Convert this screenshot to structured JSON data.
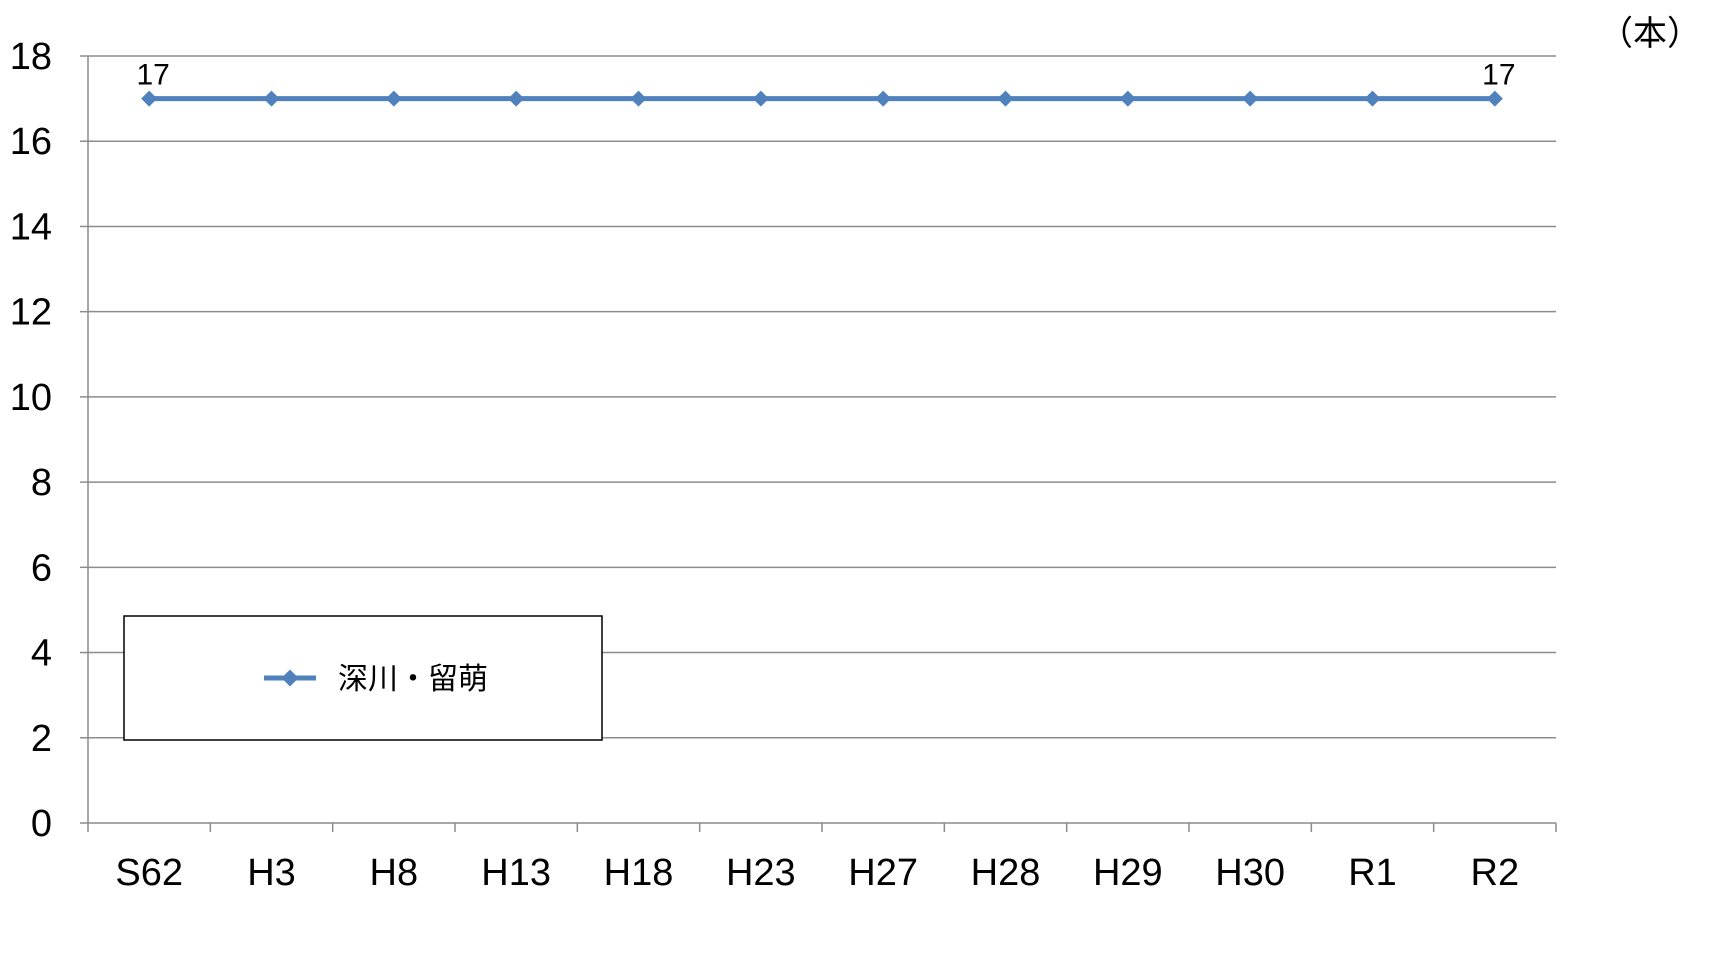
{
  "unit_label": "（本）",
  "chart_data": {
    "type": "line",
    "categories": [
      "S62",
      "H3",
      "H8",
      "H13",
      "H18",
      "H23",
      "H27",
      "H28",
      "H29",
      "H30",
      "R1",
      "R2"
    ],
    "series": [
      {
        "name": "深川・留萌",
        "values": [
          17,
          17,
          17,
          17,
          17,
          17,
          17,
          17,
          17,
          17,
          17,
          17
        ],
        "color": "#4f81bd"
      }
    ],
    "data_labels": [
      {
        "category": "S62",
        "text": "17"
      },
      {
        "category": "R2",
        "text": "17"
      }
    ],
    "y_ticks": [
      "0",
      "2",
      "4",
      "6",
      "8",
      "10",
      "12",
      "14",
      "16",
      "18"
    ],
    "ylim": [
      0,
      18
    ],
    "grid": true,
    "legend": {
      "placement": "bottom-left",
      "text": "深川・留萌"
    }
  }
}
